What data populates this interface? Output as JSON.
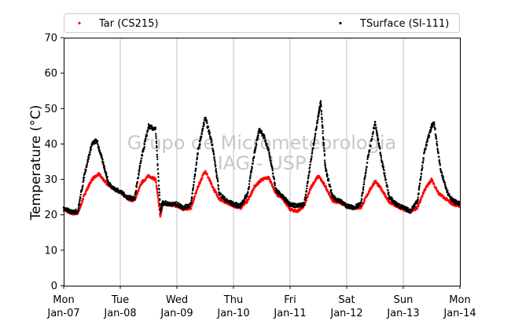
{
  "chart_data": {
    "type": "scatter",
    "ylabel": "Temperature (°C)",
    "xlabel": "",
    "ylim": [
      0,
      70
    ],
    "yticks": [
      0,
      10,
      20,
      30,
      40,
      50,
      60,
      70
    ],
    "xlim": [
      "2019-01-07",
      "2019-01-14"
    ],
    "xticks": [
      {
        "day": "Mon",
        "date": "Jan-07"
      },
      {
        "day": "Tue",
        "date": "Jan-08"
      },
      {
        "day": "Wed",
        "date": "Jan-09"
      },
      {
        "day": "Thu",
        "date": "Jan-10"
      },
      {
        "day": "Fri",
        "date": "Jan-11"
      },
      {
        "day": "Sat",
        "date": "Jan-12"
      },
      {
        "day": "Sun",
        "date": "Jan-13"
      },
      {
        "day": "Mon",
        "date": "Jan-14"
      }
    ],
    "grid": "vertical",
    "legend_position": "top",
    "watermark": [
      "Grupo de Micrometeorologia",
      "IAG - USP"
    ],
    "series": [
      {
        "name": "Tar (CS215)",
        "color": "#ff0000",
        "marker": "dot",
        "points": [
          [
            "2019-01-07 00:00",
            21.5
          ],
          [
            "2019-01-07 03:00",
            20.5
          ],
          [
            "2019-01-07 06:00",
            20.3
          ],
          [
            "2019-01-07 09:00",
            26
          ],
          [
            "2019-01-07 12:00",
            30
          ],
          [
            "2019-01-07 15:00",
            31.5
          ],
          [
            "2019-01-07 18:00",
            29
          ],
          [
            "2019-01-07 21:00",
            27.5
          ],
          [
            "2019-01-08 00:00",
            26.5
          ],
          [
            "2019-01-08 03:00",
            24.5
          ],
          [
            "2019-01-08 06:00",
            24
          ],
          [
            "2019-01-08 09:00",
            29
          ],
          [
            "2019-01-08 12:00",
            31
          ],
          [
            "2019-01-08 15:00",
            30
          ],
          [
            "2019-01-08 17:00",
            19.5
          ],
          [
            "2019-01-08 18:00",
            23
          ],
          [
            "2019-01-08 21:00",
            23
          ],
          [
            "2019-01-09 00:00",
            22.5
          ],
          [
            "2019-01-09 03:00",
            21.5
          ],
          [
            "2019-01-09 06:00",
            22
          ],
          [
            "2019-01-09 09:00",
            28
          ],
          [
            "2019-01-09 12:00",
            32.5
          ],
          [
            "2019-01-09 15:00",
            28
          ],
          [
            "2019-01-09 18:00",
            24.5
          ],
          [
            "2019-01-09 21:00",
            23.5
          ],
          [
            "2019-01-10 00:00",
            22.5
          ],
          [
            "2019-01-10 03:00",
            22
          ],
          [
            "2019-01-10 06:00",
            24
          ],
          [
            "2019-01-10 09:00",
            28
          ],
          [
            "2019-01-10 12:00",
            30
          ],
          [
            "2019-01-10 15:00",
            30.5
          ],
          [
            "2019-01-10 18:00",
            26
          ],
          [
            "2019-01-10 21:00",
            24.5
          ],
          [
            "2019-01-11 00:00",
            21.5
          ],
          [
            "2019-01-11 03:00",
            21
          ],
          [
            "2019-01-11 06:00",
            22.5
          ],
          [
            "2019-01-11 09:00",
            28
          ],
          [
            "2019-01-11 12:00",
            31
          ],
          [
            "2019-01-11 15:00",
            28
          ],
          [
            "2019-01-11 18:00",
            24
          ],
          [
            "2019-01-11 21:00",
            23.5
          ],
          [
            "2019-01-12 00:00",
            22.5
          ],
          [
            "2019-01-12 03:00",
            22
          ],
          [
            "2019-01-12 06:00",
            22
          ],
          [
            "2019-01-12 09:00",
            26
          ],
          [
            "2019-01-12 12:00",
            29.5
          ],
          [
            "2019-01-12 15:00",
            27
          ],
          [
            "2019-01-12 18:00",
            23.5
          ],
          [
            "2019-01-12 21:00",
            22.5
          ],
          [
            "2019-01-13 00:00",
            21.5
          ],
          [
            "2019-01-13 03:00",
            21
          ],
          [
            "2019-01-13 06:00",
            22
          ],
          [
            "2019-01-13 09:00",
            27
          ],
          [
            "2019-01-13 12:00",
            30
          ],
          [
            "2019-01-13 15:00",
            26
          ],
          [
            "2019-01-13 18:00",
            24.5
          ],
          [
            "2019-01-13 21:00",
            23
          ],
          [
            "2019-01-14 00:00",
            22.5
          ]
        ]
      },
      {
        "name": "TSurface (SI-111)",
        "color": "#000000",
        "marker": "dot",
        "points": [
          [
            "2019-01-07 00:00",
            21.8
          ],
          [
            "2019-01-07 03:00",
            20.8
          ],
          [
            "2019-01-07 06:00",
            21
          ],
          [
            "2019-01-07 09:00",
            32
          ],
          [
            "2019-01-07 12:00",
            40
          ],
          [
            "2019-01-07 14:00",
            41
          ],
          [
            "2019-01-07 17:00",
            34
          ],
          [
            "2019-01-07 19:00",
            29
          ],
          [
            "2019-01-07 21:00",
            27.5
          ],
          [
            "2019-01-08 00:00",
            26.5
          ],
          [
            "2019-01-08 03:00",
            25
          ],
          [
            "2019-01-08 06:00",
            24.5
          ],
          [
            "2019-01-08 09:00",
            36
          ],
          [
            "2019-01-08 12:00",
            45
          ],
          [
            "2019-01-08 15:00",
            44
          ],
          [
            "2019-01-08 17:00",
            21
          ],
          [
            "2019-01-08 18:00",
            23.5
          ],
          [
            "2019-01-08 21:00",
            23
          ],
          [
            "2019-01-09 00:00",
            23
          ],
          [
            "2019-01-09 03:00",
            22
          ],
          [
            "2019-01-09 06:00",
            23
          ],
          [
            "2019-01-09 09:00",
            38
          ],
          [
            "2019-01-09 12:00",
            47.5
          ],
          [
            "2019-01-09 15:00",
            40
          ],
          [
            "2019-01-09 18:00",
            26
          ],
          [
            "2019-01-09 21:00",
            24
          ],
          [
            "2019-01-10 00:00",
            23
          ],
          [
            "2019-01-10 03:00",
            22.5
          ],
          [
            "2019-01-10 06:00",
            26
          ],
          [
            "2019-01-10 09:00",
            38
          ],
          [
            "2019-01-10 11:00",
            44
          ],
          [
            "2019-01-10 13:00",
            42
          ],
          [
            "2019-01-10 15:00",
            38
          ],
          [
            "2019-01-10 18:00",
            27
          ],
          [
            "2019-01-10 21:00",
            25
          ],
          [
            "2019-01-11 00:00",
            23
          ],
          [
            "2019-01-11 03:00",
            22.5
          ],
          [
            "2019-01-11 06:00",
            23
          ],
          [
            "2019-01-11 09:00",
            36
          ],
          [
            "2019-01-11 12:00",
            48
          ],
          [
            "2019-01-11 13:00",
            52
          ],
          [
            "2019-01-11 15:00",
            33
          ],
          [
            "2019-01-11 18:00",
            25
          ],
          [
            "2019-01-11 21:00",
            24
          ],
          [
            "2019-01-12 00:00",
            22.5
          ],
          [
            "2019-01-12 03:00",
            22
          ],
          [
            "2019-01-12 06:00",
            23
          ],
          [
            "2019-01-12 09:00",
            36
          ],
          [
            "2019-01-12 12:00",
            46
          ],
          [
            "2019-01-12 15:00",
            35
          ],
          [
            "2019-01-12 18:00",
            25
          ],
          [
            "2019-01-12 21:00",
            23
          ],
          [
            "2019-01-13 00:00",
            22
          ],
          [
            "2019-01-13 03:00",
            21
          ],
          [
            "2019-01-13 06:00",
            24
          ],
          [
            "2019-01-13 09:00",
            38
          ],
          [
            "2019-01-13 12:00",
            45
          ],
          [
            "2019-01-13 13:00",
            46
          ],
          [
            "2019-01-13 16:00",
            32
          ],
          [
            "2019-01-13 19:00",
            26
          ],
          [
            "2019-01-13 21:00",
            24
          ],
          [
            "2019-01-14 00:00",
            23
          ]
        ]
      }
    ]
  }
}
